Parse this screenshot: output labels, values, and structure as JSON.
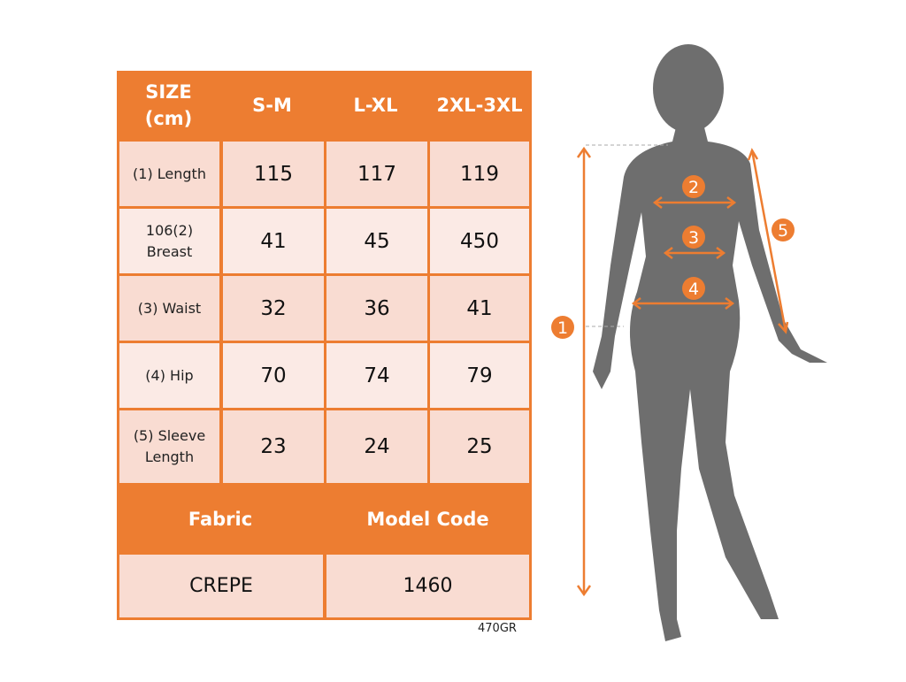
{
  "table": {
    "header": [
      "SIZE (cm)",
      "S-M",
      "L-XL",
      "2XL-3XL"
    ],
    "header_size_line1": "SIZE",
    "header_size_line2": "(cm)",
    "rows": [
      {
        "label": "(1) Length",
        "values": [
          "115",
          "117",
          "119"
        ]
      },
      {
        "label_line1": "106(2)",
        "label_line2": "Breast",
        "values": [
          "41",
          "45",
          "450"
        ]
      },
      {
        "label": "(3) Waist",
        "values": [
          "32",
          "36",
          "41"
        ]
      },
      {
        "label": "(4) Hip",
        "values": [
          "70",
          "74",
          "79"
        ]
      },
      {
        "label_line1": "(5) Sleeve",
        "label_line2": "Length",
        "values": [
          "23",
          "24",
          "25"
        ]
      }
    ],
    "fabric_label": "Fabric",
    "model_code_label": "Model Code",
    "fabric_value": "CREPE",
    "model_code_value": "1460"
  },
  "product_code": "470GR",
  "figure": {
    "markers": [
      "1",
      "2",
      "3",
      "4",
      "5"
    ]
  },
  "colors": {
    "accent": "#ED7D31",
    "cell": "#F9DCD2",
    "cell_light": "#FBEAE5",
    "silhouette": "#6E6E6E"
  }
}
